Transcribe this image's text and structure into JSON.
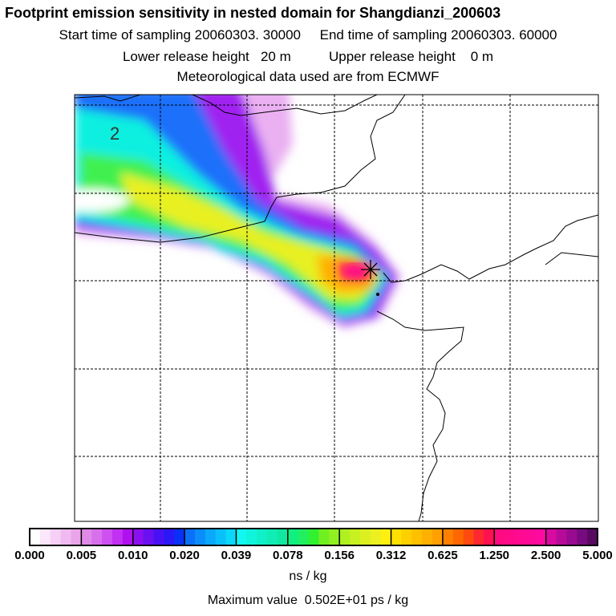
{
  "header": {
    "title": "Footprint emission sensitivity in nested domain for Shangdianzi_200603",
    "start_time": "Start time of sampling 20060303. 30000",
    "end_time": "End time of sampling 20060303. 60000",
    "lower_height": "Lower release height   20 m",
    "upper_height": "Upper release height    0 m",
    "met_data": "Meteorological data used are from ECMWF"
  },
  "map": {
    "contour_label": "2",
    "marker_icon": "star-cross-icon"
  },
  "colorbar": {
    "labels": [
      "0.000",
      "0.005",
      "0.010",
      "0.020",
      "0.039",
      "0.078",
      "0.156",
      "0.312",
      "0.625",
      "1.250",
      "2.500",
      "5.000"
    ],
    "colors": [
      "#ffffff",
      "#fbe6fb",
      "#f6d0f6",
      "#f0baf0",
      "#eaa4ea",
      "#e08ae8",
      "#d870ec",
      "#cf50f0",
      "#c230f2",
      "#b010f0",
      "#8a10f0",
      "#6a10f2",
      "#4a10f4",
      "#2a18f6",
      "#0a30f8",
      "#0a70fa",
      "#0a8cfa",
      "#0aa8fa",
      "#0ac0fa",
      "#0ad8fa",
      "#10f8f0",
      "#10f4dc",
      "#10f0c8",
      "#10ecb4",
      "#10e8a0",
      "#10f080",
      "#20f060",
      "#30f030",
      "#70f020",
      "#90f020",
      "#b0f020",
      "#c8f020",
      "#dcf020",
      "#ecf020",
      "#fff010",
      "#ffe000",
      "#ffd000",
      "#ffc000",
      "#ffb000",
      "#ffa000",
      "#ff8000",
      "#ff6800",
      "#ff4a10",
      "#ff2830",
      "#ff1050",
      "#ff0a80",
      "#ff0a88",
      "#ff0a90",
      "#ff0a98",
      "#ff0aa0",
      "#d80aa0",
      "#b80a98",
      "#980a90",
      "#780a80",
      "#580a60"
    ],
    "unit": "ns / kg",
    "max_value": "Maximum value  0.502E+01 ps / kg"
  }
}
